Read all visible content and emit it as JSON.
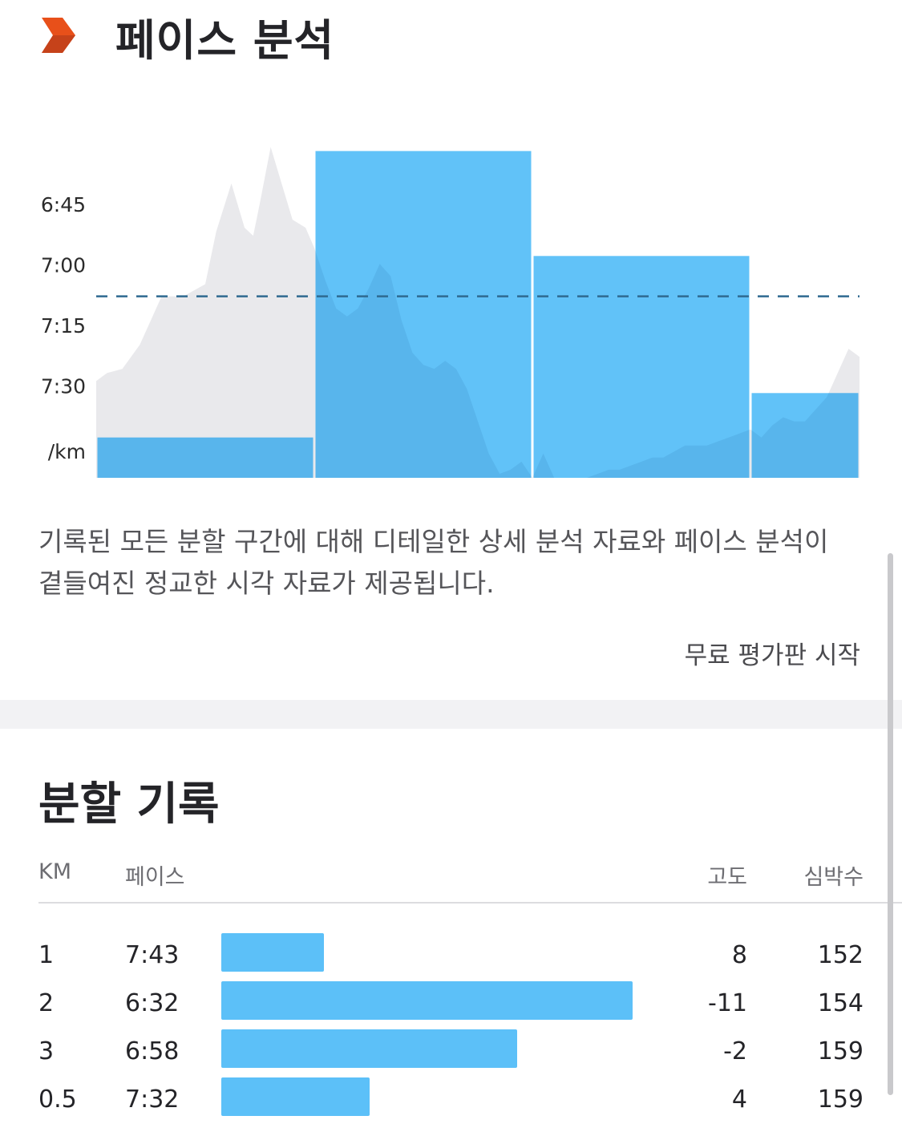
{
  "header": {
    "title": "페이스 분석",
    "logo_icon": "strava-chevron-icon",
    "accent_color": "#fc5200"
  },
  "chart_data": {
    "type": "bar",
    "y_tick_labels": [
      "6:45",
      "7:00",
      "7:15",
      "7:30",
      "/km"
    ],
    "ylim_seconds_per_km": [
      378,
      473
    ],
    "y_ticks_seconds": [
      405,
      420,
      435,
      450
    ],
    "reference_line_seconds": 428,
    "bar_color": "#5cc0f8",
    "area_color": "#e9e9ec",
    "reference_line_color": "#2f6a90",
    "bars": [
      {
        "km": 1,
        "pace_seconds": 463,
        "distance_km": 1
      },
      {
        "km": 2,
        "pace_seconds": 392,
        "distance_km": 1
      },
      {
        "km": 3,
        "pace_seconds": 418,
        "distance_km": 1
      },
      {
        "km": 0.5,
        "pace_seconds": 452,
        "distance_km": 0.5
      }
    ],
    "pace_trace": {
      "distance_km": [
        0,
        0.05,
        0.12,
        0.2,
        0.3,
        0.4,
        0.5,
        0.55,
        0.62,
        0.68,
        0.72,
        0.75,
        0.8,
        0.85,
        0.9,
        0.96,
        1.0,
        1.05,
        1.1,
        1.15,
        1.2,
        1.25,
        1.3,
        1.35,
        1.4,
        1.45,
        1.5,
        1.55,
        1.6,
        1.65,
        1.7,
        1.75,
        1.8,
        1.85,
        1.9,
        1.95,
        2.0,
        2.05,
        2.1,
        2.15,
        2.2,
        2.25,
        2.3,
        2.35,
        2.4,
        2.45,
        2.5,
        2.55,
        2.6,
        2.7,
        2.8,
        2.9,
        3.0,
        3.05,
        3.1,
        3.15,
        3.2,
        3.25,
        3.3,
        3.35,
        3.4,
        3.45,
        3.5
      ],
      "pace_seconds": [
        449,
        447,
        446,
        440,
        428,
        428,
        425,
        412,
        400,
        411,
        413,
        405,
        391,
        400,
        409,
        411,
        416,
        424,
        431,
        433,
        431,
        426,
        420,
        423,
        434,
        442,
        445,
        446,
        444,
        446,
        451,
        459,
        467,
        472,
        471,
        469,
        473,
        467,
        473,
        473,
        473,
        473,
        472,
        471,
        471,
        470,
        469,
        468,
        468,
        465,
        465,
        463,
        461,
        463,
        460,
        458,
        459,
        459,
        456,
        453,
        447,
        441,
        443
      ]
    }
  },
  "description": "기록된 모든 분할 구간에 대해 디테일한 상세 분석 자료와 페이스 분석이 곁들여진 정교한 시각 자료가 제공됩니다.",
  "trial_link": "무료 평가판 시작",
  "splits": {
    "title": "분할 기록",
    "columns": {
      "km": "KM",
      "pace": "페이스",
      "elevation": "고도",
      "heart_rate": "심박수"
    },
    "bar_color": "#5cc0f8",
    "rows": [
      {
        "km": "1",
        "pace": "7:43",
        "elevation": "8",
        "heart_rate": "152",
        "bar_fraction": 0.25
      },
      {
        "km": "2",
        "pace": "6:32",
        "elevation": "-11",
        "heart_rate": "154",
        "bar_fraction": 1.0
      },
      {
        "km": "3",
        "pace": "6:58",
        "elevation": "-2",
        "heart_rate": "159",
        "bar_fraction": 0.72
      },
      {
        "km": "0.5",
        "pace": "7:32",
        "elevation": "4",
        "heart_rate": "159",
        "bar_fraction": 0.36
      }
    ]
  }
}
